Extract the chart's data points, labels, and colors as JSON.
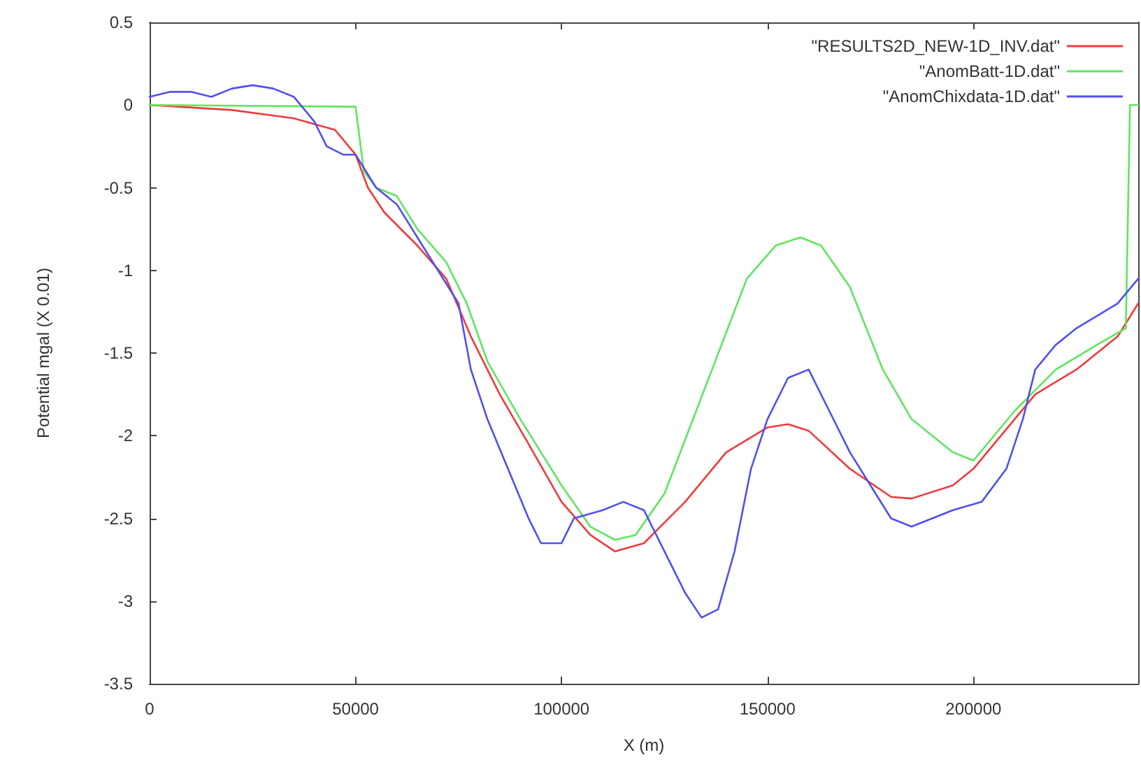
{
  "chart_data": {
    "type": "line",
    "xlabel": "X (m)",
    "ylabel": "Potential mgal (X 0.01)",
    "xlim": [
      0,
      240000
    ],
    "ylim": [
      -3.5,
      0.5
    ],
    "xticks": [
      0,
      50000,
      100000,
      150000,
      200000
    ],
    "yticks": [
      -3.5,
      -3,
      -2.5,
      -2,
      -1.5,
      -1,
      -0.5,
      0,
      0.5
    ],
    "grid": false,
    "legend": "top right",
    "marker": "none",
    "line_style": "solid",
    "series": [
      {
        "name": "\"RESULTS2D_NEW-1D_INV.dat\"",
        "color": "#f03a3a",
        "x": [
          0,
          20000,
          35000,
          45000,
          50000,
          53000,
          57000,
          65000,
          72000,
          78000,
          85000,
          92000,
          100000,
          107000,
          113000,
          120000,
          130000,
          140000,
          150000,
          155000,
          160000,
          170000,
          180000,
          185000,
          195000,
          200000,
          210000,
          215000,
          225000,
          235000,
          240000
        ],
        "values": [
          0,
          -0.03,
          -0.08,
          -0.15,
          -0.3,
          -0.5,
          -0.65,
          -0.85,
          -1.05,
          -1.4,
          -1.75,
          -2.05,
          -2.4,
          -2.6,
          -2.7,
          -2.65,
          -2.4,
          -2.1,
          -1.95,
          -1.93,
          -1.97,
          -2.2,
          -2.37,
          -2.38,
          -2.3,
          -2.2,
          -1.9,
          -1.75,
          -1.6,
          -1.4,
          -1.2
        ]
      },
      {
        "name": "\"AnomBatt-1D.dat\"",
        "color": "#5ee65e",
        "x": [
          0,
          50000,
          52000,
          55000,
          60000,
          65000,
          72000,
          77000,
          82000,
          90000,
          100000,
          107000,
          113000,
          118000,
          125000,
          135000,
          145000,
          152000,
          158000,
          163000,
          170000,
          178000,
          185000,
          195000,
          200000,
          210000,
          220000,
          230000,
          237000,
          238000,
          240000
        ],
        "values": [
          0,
          -0.01,
          -0.4,
          -0.5,
          -0.55,
          -0.75,
          -0.95,
          -1.2,
          -1.55,
          -1.9,
          -2.3,
          -2.55,
          -2.63,
          -2.6,
          -2.35,
          -1.7,
          -1.05,
          -0.85,
          -0.8,
          -0.85,
          -1.1,
          -1.6,
          -1.9,
          -2.1,
          -2.15,
          -1.85,
          -1.6,
          -1.45,
          -1.35,
          0,
          0
        ]
      },
      {
        "name": "\"AnomChixdata-1D.dat\"",
        "color": "#5050f0",
        "x": [
          0,
          5000,
          10000,
          15000,
          20000,
          25000,
          30000,
          35000,
          40000,
          43000,
          47000,
          50000,
          55000,
          60000,
          65000,
          70000,
          75000,
          78000,
          82000,
          87000,
          92000,
          95000,
          100000,
          103000,
          110000,
          115000,
          120000,
          125000,
          130000,
          134000,
          138000,
          142000,
          146000,
          150000,
          155000,
          160000,
          165000,
          170000,
          175000,
          180000,
          185000,
          195000,
          202000,
          208000,
          212000,
          215000,
          220000,
          225000,
          235000,
          240000
        ],
        "values": [
          0.05,
          0.08,
          0.08,
          0.05,
          0.1,
          0.12,
          0.1,
          0.05,
          -0.1,
          -0.25,
          -0.3,
          -0.3,
          -0.5,
          -0.6,
          -0.8,
          -1,
          -1.2,
          -1.6,
          -1.9,
          -2.2,
          -2.5,
          -2.65,
          -2.65,
          -2.5,
          -2.45,
          -2.4,
          -2.45,
          -2.7,
          -2.95,
          -3.1,
          -3.05,
          -2.7,
          -2.2,
          -1.9,
          -1.65,
          -1.6,
          -1.85,
          -2.1,
          -2.3,
          -2.5,
          -2.55,
          -2.45,
          -2.4,
          -2.2,
          -1.9,
          -1.6,
          -1.45,
          -1.35,
          -1.2,
          -1.05
        ]
      }
    ]
  }
}
